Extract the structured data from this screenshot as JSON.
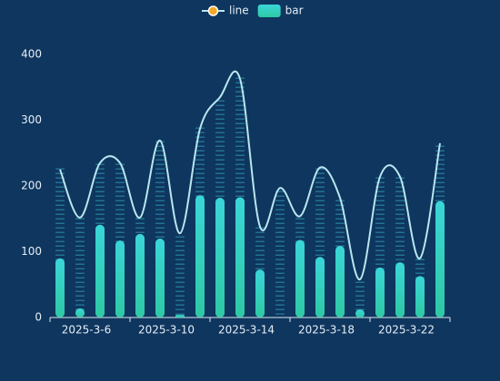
{
  "chart_data": {
    "type": "bar",
    "categories": [
      null,
      "2025-3-6",
      null,
      null,
      null,
      "2025-3-10",
      null,
      null,
      null,
      "2025-3-14",
      null,
      null,
      null,
      "2025-3-18",
      null,
      null,
      null,
      "2025-3-22",
      null,
      null
    ],
    "series": [
      {
        "name": "line",
        "type": "line",
        "color": "#b9e6f0",
        "symbol_color": "#f5a623",
        "values": [
          225,
          152,
          235,
          235,
          152,
          269,
          128,
          287,
          335,
          363,
          138,
          197,
          154,
          228,
          182,
          58,
          214,
          214,
          90,
          265
        ]
      },
      {
        "name": "bar",
        "type": "bar",
        "color": "#3ad6d8",
        "color_bottom": "#2ec9a4",
        "values": [
          90,
          14,
          141,
          117,
          127,
          120,
          4,
          186,
          182,
          183,
          73,
          0,
          118,
          92,
          109,
          12,
          76,
          84,
          63,
          177
        ]
      }
    ],
    "ylim": [
      0,
      400
    ],
    "yticks": [
      0,
      100,
      200,
      300,
      400
    ],
    "grid": false
  }
}
